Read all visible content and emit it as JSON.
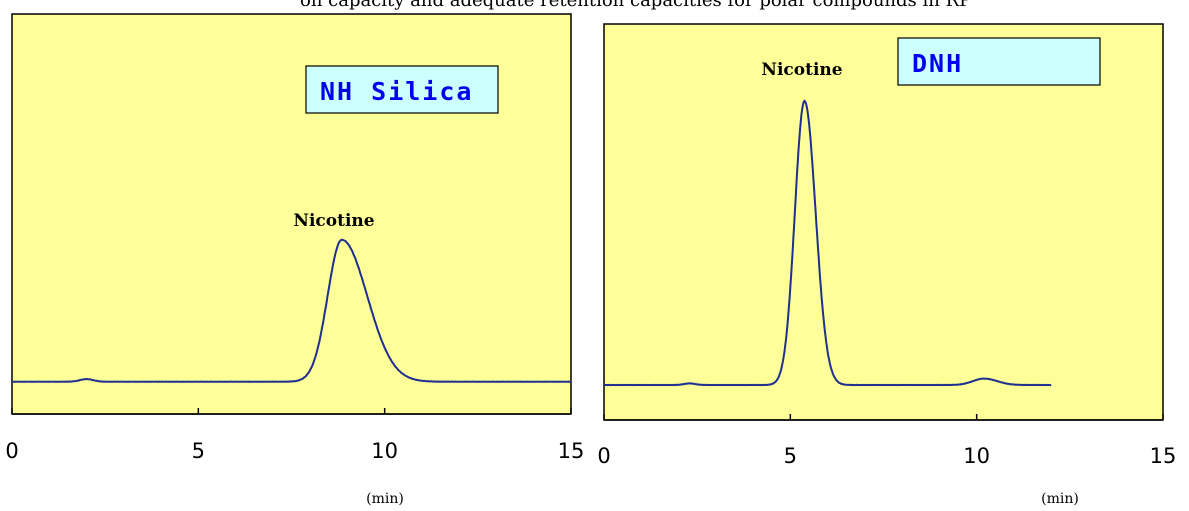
{
  "header_fragment": "on capacity and adequate retention capacities for polar compounds in RP",
  "colors": {
    "plot_bg": "#FFFF99",
    "trace": "#1F2F8F",
    "legend_bg": "#CCFFFF",
    "legend_text": "#0000EE",
    "axis": "#000000"
  },
  "chart_data": [
    {
      "type": "line",
      "legend_label": "NH Silica",
      "peak_label": "Nicotine",
      "x_unit": "(min)",
      "xlim": [
        0,
        15
      ],
      "x_ticks": [
        0,
        5,
        10,
        15
      ],
      "baseline": 1.0,
      "noise_bumps": [
        {
          "t": 2.0,
          "h": 0.6,
          "w": 0.18
        }
      ],
      "peaks": [
        {
          "t": 8.85,
          "h": 33.0,
          "sigma_left": 0.38,
          "sigma_right": 0.68
        }
      ],
      "trace_end": 15.0
    },
    {
      "type": "line",
      "legend_label": "DNH",
      "peak_label": "Nicotine",
      "x_unit": "(min)",
      "xlim": [
        0,
        15
      ],
      "x_ticks": [
        0,
        5,
        10,
        15
      ],
      "baseline": 0.0,
      "noise_bumps": [
        {
          "t": 2.3,
          "h": 0.4,
          "w": 0.15
        }
      ],
      "peaks": [
        {
          "t": 5.38,
          "h": 71.0,
          "sigma_left": 0.26,
          "sigma_right": 0.3
        },
        {
          "t": 10.2,
          "h": 1.6,
          "sigma_left": 0.3,
          "sigma_right": 0.35
        }
      ],
      "trace_end": 12.0
    }
  ]
}
